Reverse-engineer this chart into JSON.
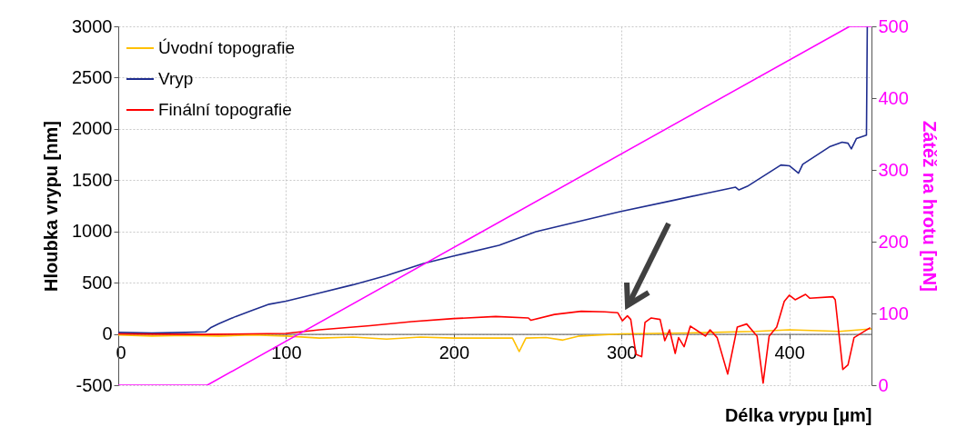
{
  "chart_data": {
    "type": "line",
    "xlabel": "Délka vrypu [µm]",
    "ylabel": "Hloubka vrypu [nm]",
    "y2label": "Zátěž na hrotu [mN]",
    "xlim": [
      0,
      449
    ],
    "xticks": [
      0,
      100,
      200,
      300,
      400
    ],
    "ylim": [
      -500,
      3000
    ],
    "yticks": [
      -500,
      0,
      500,
      1000,
      1500,
      2000,
      2500,
      3000
    ],
    "y2lim": [
      0,
      500
    ],
    "y2ticks": [
      0,
      100,
      200,
      300,
      400,
      500
    ],
    "grid": true,
    "legend": "top left",
    "line_style": "solid",
    "marker": "none",
    "series": [
      {
        "name": "Úvodní topografie",
        "color": "#ffc000",
        "x": [
          0,
          20,
          40,
          60,
          80,
          100,
          120,
          140,
          160,
          180,
          200,
          220,
          235,
          239,
          243,
          255,
          265,
          275,
          300,
          340,
          380,
          400,
          430,
          449
        ],
        "values": [
          -10,
          -20,
          -15,
          -20,
          -10,
          -20,
          -40,
          -30,
          -50,
          -30,
          -40,
          -40,
          -40,
          -172,
          -40,
          -35,
          -60,
          -20,
          0,
          10,
          25,
          40,
          25,
          50
        ]
      },
      {
        "name": "Vryp",
        "color": "#1f2d8f",
        "x": [
          0,
          20,
          40,
          52,
          55,
          60,
          70,
          80,
          90,
          100,
          120,
          140,
          160,
          182,
          200,
          227,
          249,
          270,
          299,
          330,
          350,
          368,
          370,
          375,
          395,
          400,
          405.5,
          408,
          424,
          431.5,
          435,
          437,
          440,
          446,
          446.5
        ],
        "values": [
          15,
          10,
          15,
          20,
          60,
          100,
          170,
          230,
          290,
          320,
          400,
          480,
          570,
          688,
          760,
          865,
          998,
          1080,
          1193,
          1300,
          1370,
          1431,
          1405,
          1440,
          1648,
          1640,
          1568,
          1654,
          1825,
          1870,
          1860,
          1805,
          1905,
          1938,
          3000
        ]
      },
      {
        "name": "Finální topografie",
        "color": "#ff0000",
        "x": [
          0,
          50,
          100,
          120,
          150,
          175,
          200,
          225,
          244.5,
          246,
          260,
          276,
          290,
          297.8,
          300.5,
          303.5,
          305.5,
          308.6,
          312,
          314,
          317.7,
          323,
          325.8,
          328.6,
          332,
          334,
          337.3,
          341,
          350,
          352.8,
          357,
          363.3,
          369,
          374.6,
          380.8,
          384.4,
          388,
          392.5,
          397,
          400,
          403.5,
          409.7,
          412.3,
          426,
          427.4,
          431.9,
          435,
          438.6,
          448.3
        ],
        "values": [
          0,
          -5,
          5,
          40,
          80,
          120,
          150,
          170,
          156,
          133,
          190,
          221,
          215,
          206,
          128,
          177,
          141,
          -199,
          -222,
          112,
          156,
          141,
          -66,
          40,
          -190,
          -36,
          -125,
          76,
          -21,
          40,
          -36,
          -391,
          67,
          97,
          -21,
          -479,
          -21,
          67,
          318,
          378,
          333,
          386,
          348,
          363,
          333,
          -346,
          -302,
          -36,
          61
        ]
      },
      {
        "color": "#ff00ff",
        "axis": "y2",
        "x": [
          0,
          53,
          436,
          449
        ],
        "values": [
          0,
          0,
          500,
          500
        ]
      }
    ]
  }
}
